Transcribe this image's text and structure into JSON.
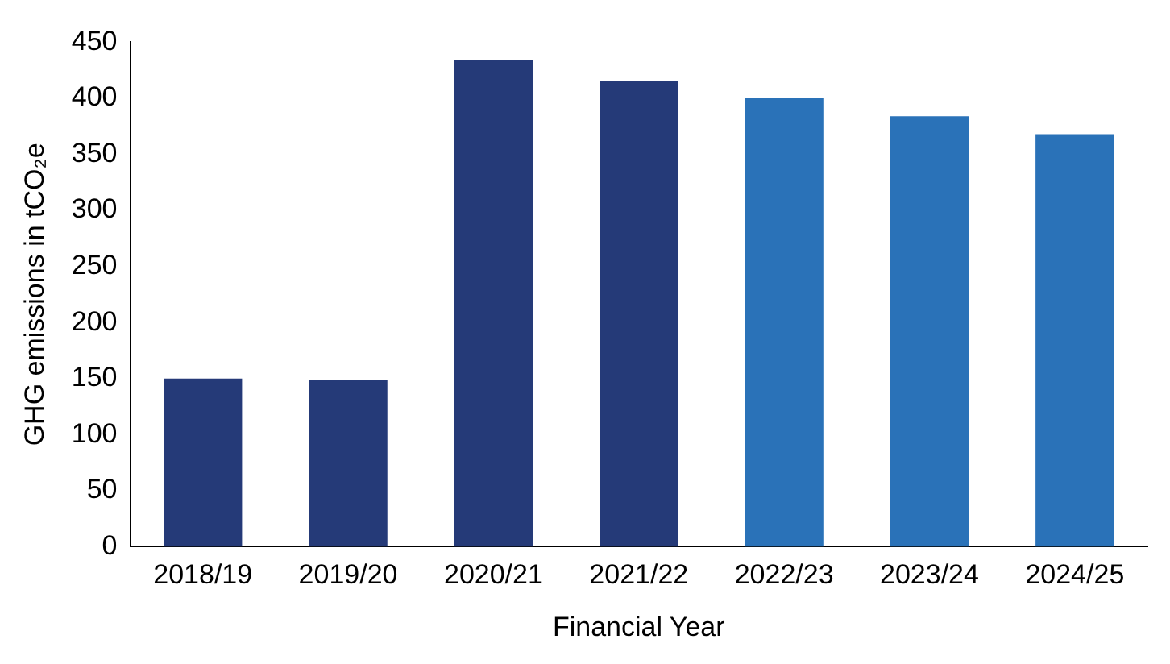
{
  "chart_data": {
    "type": "bar",
    "xlabel": "Financial Year",
    "ylabel": "GHG emissions in tCO₂e",
    "categories": [
      "2018/19",
      "2019/20",
      "2020/21",
      "2021/22",
      "2022/23",
      "2023/24",
      "2024/25"
    ],
    "values": [
      150,
      149,
      434,
      415,
      400,
      384,
      368
    ],
    "colors": [
      "#253a78",
      "#253a78",
      "#253a78",
      "#253a78",
      "#2a72b8",
      "#2a72b8",
      "#2a72b8"
    ],
    "ylim": [
      0,
      450
    ],
    "yticks": [
      0,
      50,
      100,
      150,
      200,
      250,
      300,
      350,
      400,
      450
    ],
    "grid": false,
    "legend": false
  }
}
